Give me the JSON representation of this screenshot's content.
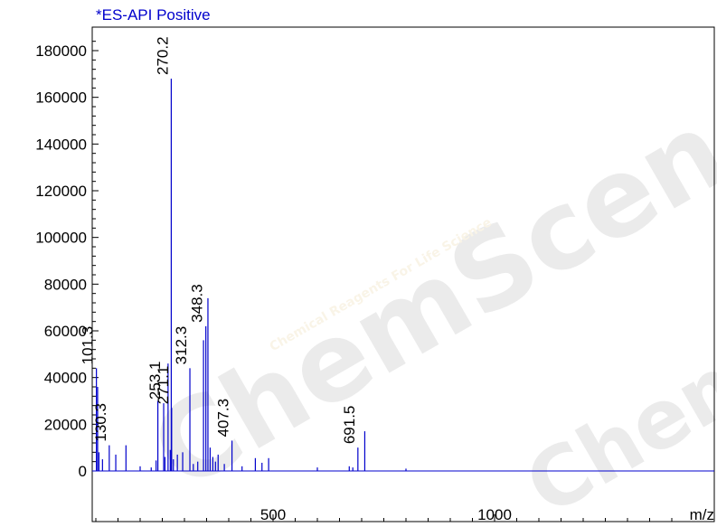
{
  "chart_data": {
    "type": "mass-spectrum",
    "title": "*ES-API Positive",
    "xlabel": "m/z",
    "ylabel": "",
    "xlim": [
      100,
      1200
    ],
    "ylim": [
      -7000,
      187000
    ],
    "x_ticks": [
      500,
      1000
    ],
    "y_ticks": [
      0,
      20000,
      40000,
      60000,
      80000,
      100000,
      120000,
      140000,
      160000,
      180000
    ],
    "series_color": "#0000cc",
    "title_color": "#0000cc",
    "peaks": [
      {
        "x": 101.3,
        "y": 44000,
        "label": "101.3"
      },
      {
        "x": 104,
        "y": 36000
      },
      {
        "x": 107,
        "y": 8000
      },
      {
        "x": 115,
        "y": 5000
      },
      {
        "x": 130.3,
        "y": 11000,
        "label": "130.3"
      },
      {
        "x": 145,
        "y": 7000
      },
      {
        "x": 168,
        "y": 11000
      },
      {
        "x": 200,
        "y": 2000
      },
      {
        "x": 225,
        "y": 1500
      },
      {
        "x": 236,
        "y": 4500
      },
      {
        "x": 240,
        "y": 30000
      },
      {
        "x": 253.1,
        "y": 29000,
        "label": "253.1"
      },
      {
        "x": 256,
        "y": 6000
      },
      {
        "x": 263,
        "y": 46000
      },
      {
        "x": 268,
        "y": 9000
      },
      {
        "x": 270.2,
        "y": 168000,
        "label": "270.2"
      },
      {
        "x": 271.1,
        "y": 27000,
        "label": "271.1"
      },
      {
        "x": 275,
        "y": 5000
      },
      {
        "x": 284,
        "y": 7000
      },
      {
        "x": 296,
        "y": 8000
      },
      {
        "x": 312.3,
        "y": 44000,
        "label": "312.3"
      },
      {
        "x": 320,
        "y": 3000
      },
      {
        "x": 330,
        "y": 4000
      },
      {
        "x": 343,
        "y": 56000
      },
      {
        "x": 348.3,
        "y": 62000,
        "label": "348.3"
      },
      {
        "x": 353,
        "y": 74000
      },
      {
        "x": 358,
        "y": 10000
      },
      {
        "x": 364,
        "y": 6000
      },
      {
        "x": 370,
        "y": 4000
      },
      {
        "x": 376,
        "y": 7000
      },
      {
        "x": 390,
        "y": 3000
      },
      {
        "x": 407.3,
        "y": 13000,
        "label": "407.3"
      },
      {
        "x": 430,
        "y": 2000
      },
      {
        "x": 460,
        "y": 5500
      },
      {
        "x": 475,
        "y": 3500
      },
      {
        "x": 490,
        "y": 5500
      },
      {
        "x": 600,
        "y": 1500
      },
      {
        "x": 672,
        "y": 2000
      },
      {
        "x": 680,
        "y": 1500
      },
      {
        "x": 691.5,
        "y": 10000,
        "label": "691.5"
      },
      {
        "x": 707,
        "y": 17000
      },
      {
        "x": 800,
        "y": 1000
      }
    ]
  },
  "watermark": {
    "text": "ChemScene",
    "subtext": "Chemical Reagents For Life Science"
  }
}
